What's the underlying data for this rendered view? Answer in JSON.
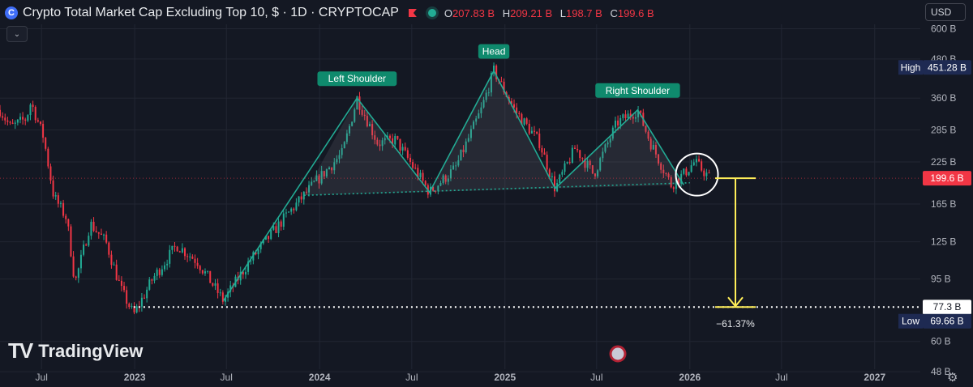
{
  "header": {
    "logo_glyph": "C",
    "title": "Crypto Total Market Cap Excluding Top 10, $ · 1D · CRYPTOCAP",
    "open_label": "O",
    "open_value": "207.83 B",
    "high_label": "H",
    "high_value": "209.21 B",
    "low_label": "L",
    "low_value": "198.7 B",
    "close_label": "C",
    "close_value": "199.6 B",
    "collapse_icon": "chevron-down-icon"
  },
  "currency": {
    "label": "USD",
    "icon": "chevron-down-icon"
  },
  "branding": {
    "mark": "TV",
    "name": "TradingView"
  },
  "settings_icon": "gear-icon",
  "colors": {
    "background": "#141823",
    "grid": "#222633",
    "up": "#22ab94",
    "down": "#f23645",
    "pattern": "#22ab94",
    "target_arrow": "#ffee58",
    "label_text": "#b2b5be"
  },
  "chart_data": {
    "type": "candlestick",
    "title": "Crypto Total Market Cap Excluding Top 10, $ · 1D · CRYPTOCAP",
    "y_scale": "log",
    "y_unit": "B",
    "y_ticks": [
      48,
      60,
      95,
      125,
      165,
      225,
      285,
      360,
      480,
      600
    ],
    "y_tick_labels": [
      "48 B",
      "60 B",
      "95 B",
      "125 B",
      "165 B",
      "225 B",
      "285 B",
      "360 B",
      "480 B",
      "600 B"
    ],
    "ylim": [
      45,
      620
    ],
    "x_range": [
      "2022-04-10",
      "2027-04-01"
    ],
    "x_ticks": [
      {
        "date": "2022-07-01",
        "label": "Jul"
      },
      {
        "date": "2023-01-01",
        "label": "2023"
      },
      {
        "date": "2023-07-01",
        "label": "Jul"
      },
      {
        "date": "2024-01-01",
        "label": "2024"
      },
      {
        "date": "2024-07-01",
        "label": "Jul"
      },
      {
        "date": "2025-01-01",
        "label": "2025"
      },
      {
        "date": "2025-07-01",
        "label": "Jul"
      },
      {
        "date": "2026-01-01",
        "label": "2026"
      },
      {
        "date": "2026-07-01",
        "label": "Jul"
      },
      {
        "date": "2027-01-01",
        "label": "2027"
      }
    ],
    "price_path": [
      {
        "date": "2022-04-10",
        "value": 330
      },
      {
        "date": "2022-05-01",
        "value": 290
      },
      {
        "date": "2022-06-01",
        "value": 310
      },
      {
        "date": "2022-06-10",
        "value": 350
      },
      {
        "date": "2022-07-05",
        "value": 270
      },
      {
        "date": "2022-07-25",
        "value": 175
      },
      {
        "date": "2022-08-20",
        "value": 148
      },
      {
        "date": "2022-09-05",
        "value": 92
      },
      {
        "date": "2022-10-05",
        "value": 143
      },
      {
        "date": "2022-11-05",
        "value": 125
      },
      {
        "date": "2022-12-05",
        "value": 88
      },
      {
        "date": "2022-12-30",
        "value": 73
      },
      {
        "date": "2023-02-05",
        "value": 95
      },
      {
        "date": "2023-03-25",
        "value": 122
      },
      {
        "date": "2023-05-05",
        "value": 108
      },
      {
        "date": "2023-06-25",
        "value": 81
      },
      {
        "date": "2023-08-15",
        "value": 108
      },
      {
        "date": "2023-10-25",
        "value": 150
      },
      {
        "date": "2023-12-25",
        "value": 195
      },
      {
        "date": "2024-02-15",
        "value": 240
      },
      {
        "date": "2024-03-15",
        "value": 360
      },
      {
        "date": "2024-04-25",
        "value": 258
      },
      {
        "date": "2024-05-30",
        "value": 265
      },
      {
        "date": "2024-08-05",
        "value": 180
      },
      {
        "date": "2024-09-25",
        "value": 215
      },
      {
        "date": "2024-11-15",
        "value": 330
      },
      {
        "date": "2024-12-10",
        "value": 440
      },
      {
        "date": "2025-01-20",
        "value": 330
      },
      {
        "date": "2025-03-10",
        "value": 260
      },
      {
        "date": "2025-04-10",
        "value": 185
      },
      {
        "date": "2025-05-20",
        "value": 250
      },
      {
        "date": "2025-06-25",
        "value": 205
      },
      {
        "date": "2025-08-10",
        "value": 300
      },
      {
        "date": "2025-09-20",
        "value": 330
      },
      {
        "date": "2025-10-15",
        "value": 260
      },
      {
        "date": "2025-11-25",
        "value": 190
      },
      {
        "date": "2025-12-20",
        "value": 206
      },
      {
        "date": "2026-01-10",
        "value": 225
      },
      {
        "date": "2026-02-10",
        "value": 200
      }
    ],
    "last_close": 199.6,
    "pattern": {
      "name": "Head and Shoulders",
      "points": [
        {
          "date": "2023-06-25",
          "value": 81
        },
        {
          "date": "2024-03-15",
          "value": 360
        },
        {
          "date": "2024-08-05",
          "value": 180
        },
        {
          "date": "2024-12-10",
          "value": 440
        },
        {
          "date": "2025-04-10",
          "value": 185
        },
        {
          "date": "2025-09-20",
          "value": 330
        },
        {
          "date": "2025-12-20",
          "value": 190
        }
      ],
      "neckline": [
        {
          "date": "2023-12-01",
          "value": 176
        },
        {
          "date": "2026-01-01",
          "value": 193
        }
      ],
      "labels": [
        {
          "text": "Left Shoulder",
          "date": "2024-03-15",
          "value": 360
        },
        {
          "text": "Head",
          "date": "2024-12-10",
          "value": 440
        },
        {
          "text": "Right Shoulder",
          "date": "2025-09-20",
          "value": 330
        }
      ]
    },
    "support_line": {
      "value": 77.3,
      "from": "2022-12-30",
      "to": "2027-04-01"
    },
    "current_level_line": {
      "value": 199.6
    },
    "highlight_circle": {
      "date": "2026-01-15",
      "value": 205
    },
    "target_arrow": {
      "date": "2026-04-01",
      "from": 199.6,
      "to": 77.3,
      "label": "−61.37%"
    },
    "price_markers": [
      {
        "name": "High",
        "value": 451.28,
        "text": "451.28 B"
      },
      {
        "name": "last",
        "value": 199.6,
        "text": "199.6 B"
      },
      {
        "name": "target",
        "value": 77.3,
        "text": "77.3 B"
      },
      {
        "name": "Low",
        "value": 69.66,
        "text": "69.66 B"
      }
    ]
  }
}
